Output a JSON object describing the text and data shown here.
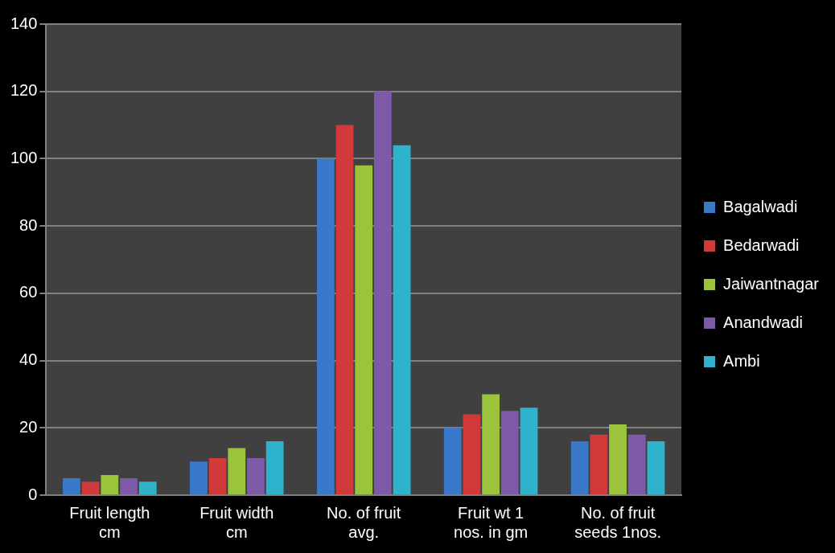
{
  "chart_data": {
    "type": "bar",
    "categories": [
      "Fruit length cm",
      "Fruit width cm",
      "No. of fruit avg.",
      "Fruit wt 1 nos. in gm",
      "No. of fruit seeds 1nos."
    ],
    "series": [
      {
        "name": "Bagalwadi",
        "color": "#3a78c9",
        "values": [
          5,
          10,
          100,
          20,
          16
        ]
      },
      {
        "name": "Bedarwadi",
        "color": "#d03a3a",
        "values": [
          4,
          11,
          110,
          24,
          18
        ]
      },
      {
        "name": "Jaiwantnagar",
        "color": "#9bc43c",
        "values": [
          6,
          14,
          98,
          30,
          21
        ]
      },
      {
        "name": "Anandwadi",
        "color": "#7d5aa8",
        "values": [
          5,
          11,
          120,
          25,
          18
        ]
      },
      {
        "name": "Ambi",
        "color": "#2fb3cc",
        "values": [
          4,
          16,
          104,
          26,
          16
        ]
      }
    ],
    "ylim": [
      0,
      140
    ],
    "yticks": [
      0,
      20,
      40,
      60,
      80,
      100,
      120,
      140
    ],
    "grid": "y",
    "legend": "right"
  }
}
